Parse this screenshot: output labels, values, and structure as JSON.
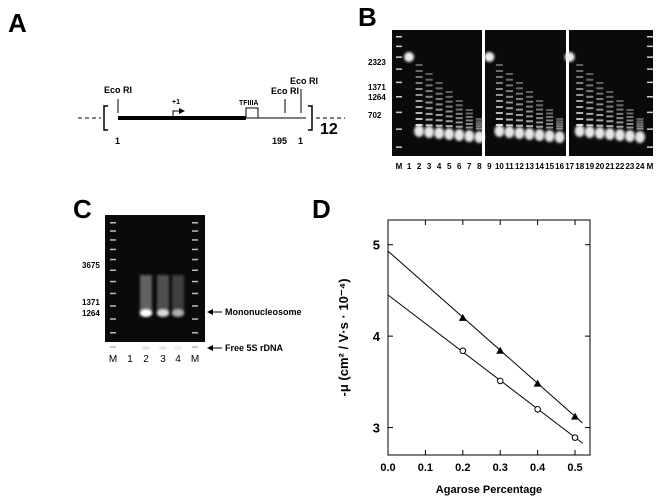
{
  "panel_a": {
    "label": "A",
    "sites": [
      "Eco RI",
      "Eco RI",
      "Eco RI"
    ],
    "start": "+1",
    "box": "TFIIIA",
    "positions": [
      1,
      195,
      1
    ],
    "repeat": 12
  },
  "panel_b": {
    "label": "B",
    "markers": [
      2323,
      1371,
      1264,
      702
    ],
    "lanes": [
      "M",
      "1",
      "2",
      "3",
      "4",
      "5",
      "6",
      "7",
      "8",
      "9",
      "10",
      "11",
      "12",
      "13",
      "14",
      "15",
      "16",
      "17",
      "18",
      "19",
      "20",
      "21",
      "22",
      "23",
      "24",
      "M"
    ]
  },
  "panel_c": {
    "label": "C",
    "markers": [
      3675,
      1371,
      1264
    ],
    "lanes": [
      "M",
      "1",
      "2",
      "3",
      "4",
      "M"
    ],
    "annotations": [
      "Mononucleosome",
      "Free 5S rDNA"
    ]
  },
  "chart_data": {
    "type": "scatter",
    "label": "D",
    "xlabel": "Agarose Percentage",
    "ylabel": "-μ (cm² / V·s · 10⁻⁴)",
    "xlim": [
      0,
      0.54
    ],
    "ylim": [
      2.7,
      5.27
    ],
    "xticks": [
      {
        "value": 0,
        "label": "0.0"
      },
      0.1,
      0.2,
      0.3,
      0.4,
      0.5
    ],
    "yticks": [
      3,
      4,
      5
    ],
    "series": [
      {
        "marker": "triangle",
        "color": "#000000",
        "x": [
          0.2,
          0.3,
          0.4,
          0.5
        ],
        "values": [
          4.2,
          3.84,
          3.48,
          3.12
        ],
        "fit": {
          "x": [
            0,
            0.52
          ],
          "values": [
            4.93,
            3.05
          ]
        }
      },
      {
        "marker": "circle",
        "color": "#000000",
        "x": [
          0.2,
          0.3,
          0.4,
          0.5
        ],
        "values": [
          3.84,
          3.51,
          3.2,
          2.89
        ],
        "fit": {
          "x": [
            0,
            0.52
          ],
          "values": [
            4.45,
            2.83
          ]
        }
      }
    ]
  }
}
